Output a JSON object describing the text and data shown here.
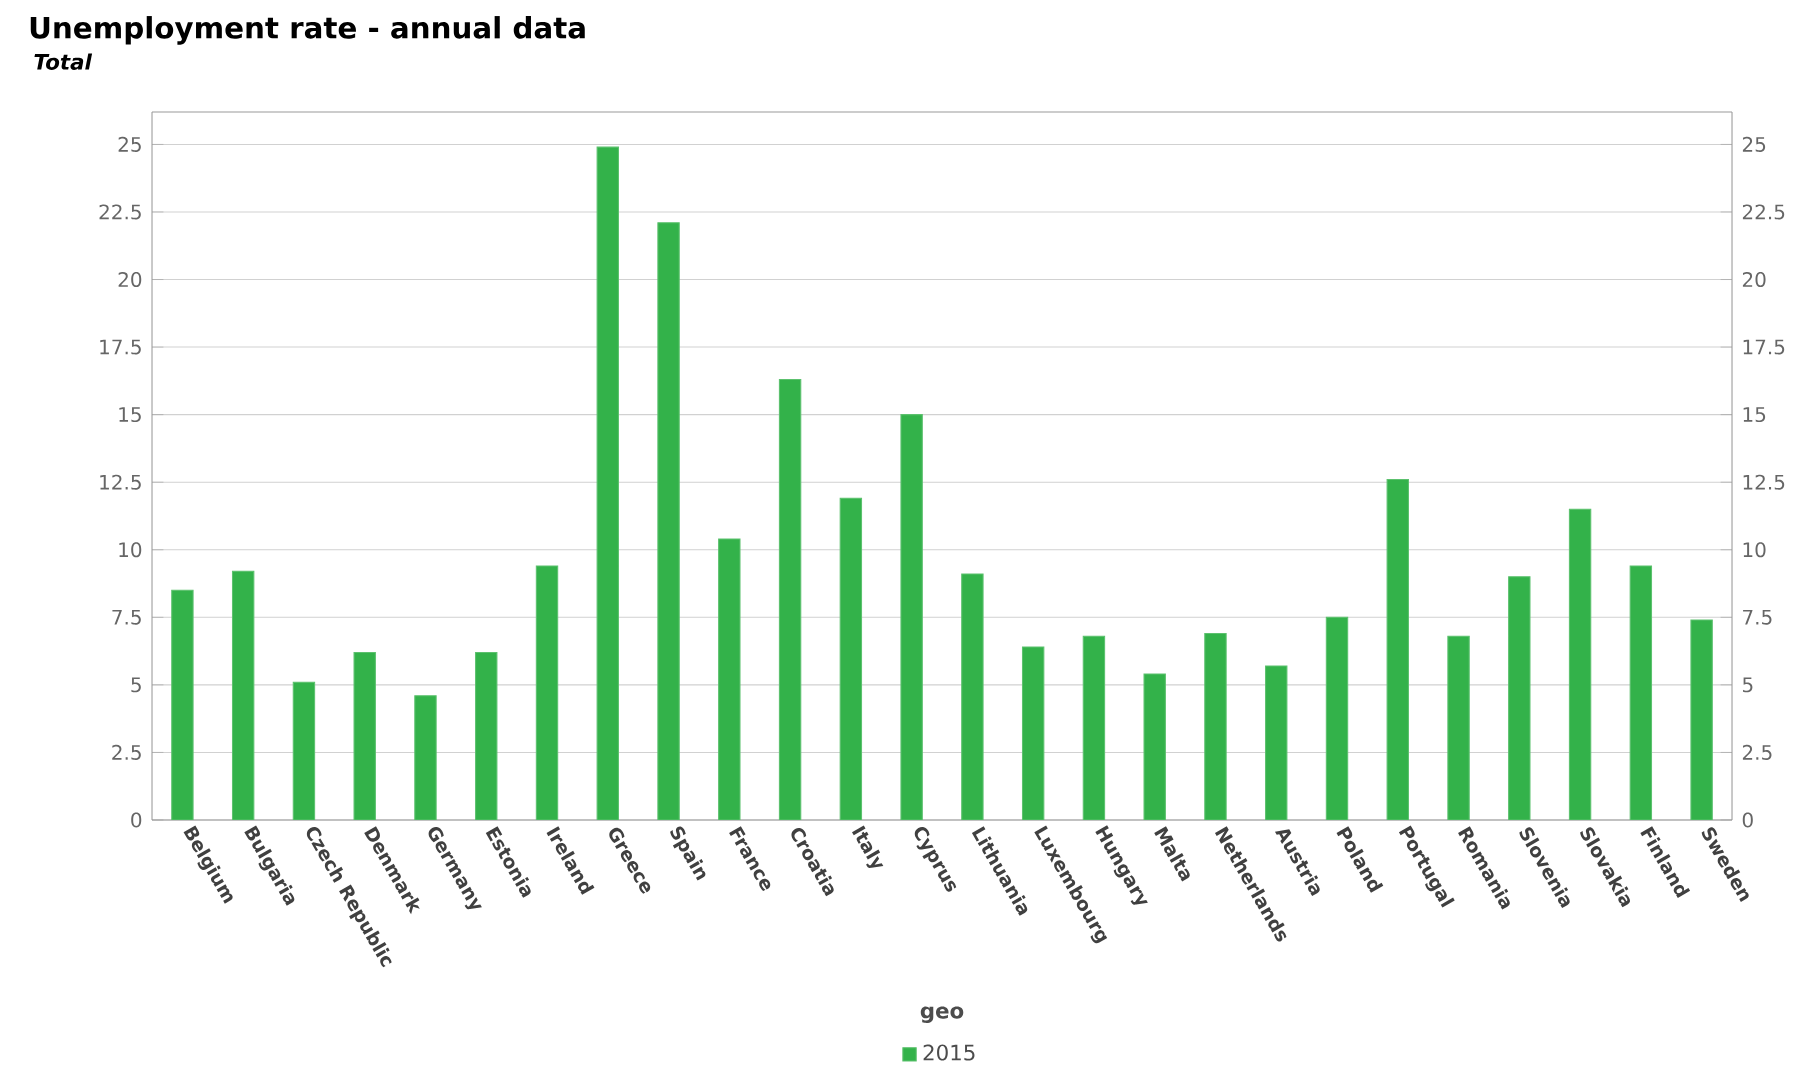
{
  "chart_data": {
    "type": "bar",
    "title": "Unemployment rate - annual data",
    "subtitle": "Total",
    "xlabel": "geo",
    "categories": [
      "Belgium",
      "Bulgaria",
      "Czech Republic",
      "Denmark",
      "Germany",
      "Estonia",
      "Ireland",
      "Greece",
      "Spain",
      "France",
      "Croatia",
      "Italy",
      "Cyprus",
      "Lithuania",
      "Luxembourg",
      "Hungary",
      "Malta",
      "Netherlands",
      "Austria",
      "Poland",
      "Portugal",
      "Romania",
      "Slovenia",
      "Slovakia",
      "Finland",
      "Sweden"
    ],
    "series": [
      {
        "name": "2015",
        "color": "#33b24a",
        "values": [
          8.5,
          9.2,
          5.1,
          6.2,
          4.6,
          6.2,
          9.4,
          24.9,
          22.1,
          10.4,
          16.3,
          11.9,
          15.0,
          9.1,
          6.4,
          6.8,
          5.4,
          6.9,
          5.7,
          7.5,
          12.6,
          6.8,
          9.0,
          11.5,
          9.4,
          7.4
        ]
      }
    ],
    "ylim": [
      0,
      26.2
    ],
    "yticks": [
      0,
      2.5,
      5,
      7.5,
      10,
      12.5,
      15,
      17.5,
      20,
      22.5,
      25
    ],
    "y2lim": [
      0,
      26.2
    ],
    "y2ticks": [
      0,
      2.5,
      5,
      7.5,
      10,
      12.5,
      15,
      17.5,
      20,
      22.5,
      25
    ],
    "grid": "y",
    "legend": "bottom"
  }
}
